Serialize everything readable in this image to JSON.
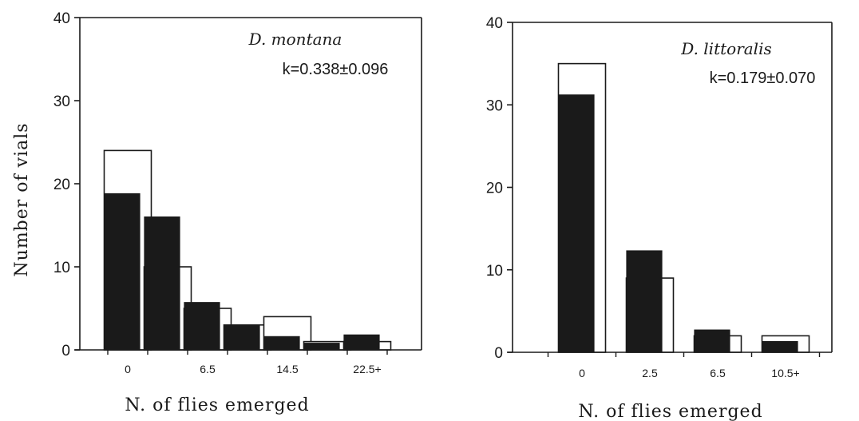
{
  "y_axis_title": "Number of vials",
  "chart_data": [
    {
      "type": "bar",
      "title": "D. montana",
      "annotation": "k=0.338±0.096",
      "xlabel": "N. of flies emerged",
      "ylabel": "Number of vials",
      "ylim": [
        0,
        40
      ],
      "yticks": [
        "0",
        "10",
        "20",
        "30",
        "40"
      ],
      "xtick_labels": [
        "0",
        "6.5",
        "14.5",
        "22.5+"
      ],
      "categories": [
        "0",
        "",
        "6.5",
        "",
        "14.5",
        "",
        "22.5+"
      ],
      "series": [
        {
          "style": "open",
          "color": "#ffffff",
          "values": [
            24,
            10,
            5,
            3,
            4,
            1,
            1
          ]
        },
        {
          "style": "filled",
          "color": "#1a1a1a",
          "values": [
            18.8,
            16,
            5.7,
            3,
            1.6,
            0.8,
            1.8
          ]
        }
      ],
      "grid": false
    },
    {
      "type": "bar",
      "title": "D. littoralis",
      "annotation": "k=0.179±0.070",
      "xlabel": "N. of flies emerged",
      "ylabel": "",
      "ylim": [
        0,
        40
      ],
      "yticks": [
        "0",
        "10",
        "20",
        "30",
        "40"
      ],
      "xtick_labels": [
        "0",
        "2.5",
        "6.5",
        "10.5+"
      ],
      "categories": [
        "0",
        "2.5",
        "6.5",
        "10.5+"
      ],
      "series": [
        {
          "style": "open",
          "color": "#ffffff",
          "values": [
            35,
            9,
            2,
            2
          ]
        },
        {
          "style": "filled",
          "color": "#1a1a1a",
          "values": [
            31.2,
            12.3,
            2.7,
            1.3
          ]
        }
      ],
      "grid": false
    }
  ]
}
